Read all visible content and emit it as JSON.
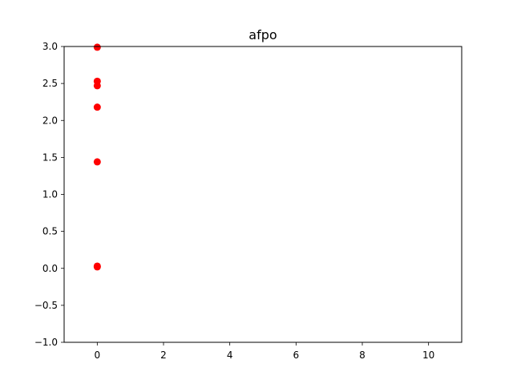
{
  "chart_data": {
    "type": "scatter",
    "title": "afpo",
    "xlabel": "",
    "ylabel": "",
    "xlim": [
      -1,
      11
    ],
    "ylim": [
      -1,
      3
    ],
    "x_ticks": [
      0,
      2,
      4,
      6,
      8,
      10
    ],
    "y_ticks": [
      -1.0,
      -0.5,
      0.0,
      0.5,
      1.0,
      1.5,
      2.0,
      2.5,
      3.0
    ],
    "x_tick_labels": [
      "0",
      "2",
      "4",
      "6",
      "8",
      "10"
    ],
    "y_tick_labels": [
      "−1.0",
      "−0.5",
      "0.0",
      "0.5",
      "1.0",
      "1.5",
      "2.0",
      "2.5",
      "3.0"
    ],
    "grid": false,
    "series": [
      {
        "color": "#ff0000",
        "points": [
          {
            "x": 0,
            "y": 2.99
          },
          {
            "x": 0,
            "y": 2.53
          },
          {
            "x": 0,
            "y": 2.47
          },
          {
            "x": 0,
            "y": 2.18
          },
          {
            "x": 0,
            "y": 1.44
          },
          {
            "x": 0,
            "y": 0.03
          },
          {
            "x": 0,
            "y": 0.02
          }
        ]
      }
    ]
  }
}
